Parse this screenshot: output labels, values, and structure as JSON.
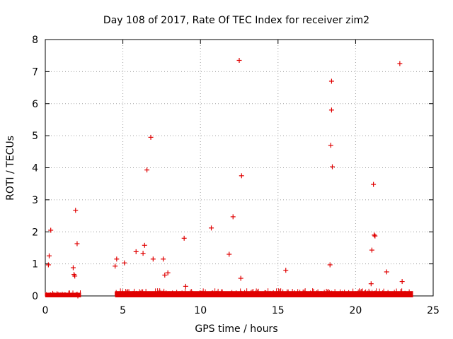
{
  "chart_data": {
    "type": "scatter",
    "title": "Day 108 of 2017, Rate Of TEC Index for receiver zim2",
    "xlabel": "GPS time / hours",
    "ylabel": "ROTI / TECUs",
    "xlim": [
      0,
      25
    ],
    "ylim": [
      0,
      8
    ],
    "xticks": [
      "0",
      "5",
      "10",
      "15",
      "20",
      "25"
    ],
    "yticks": [
      "0",
      "1",
      "2",
      "3",
      "4",
      "5",
      "6",
      "7",
      "8"
    ],
    "grid": true,
    "marker": "plus",
    "color": "#e00000",
    "baseline_segments": [
      {
        "x_start": 0.0,
        "x_end": 2.3,
        "y_max": 0.1
      },
      {
        "x_start": 4.5,
        "x_end": 23.7,
        "y_max": 0.15
      }
    ],
    "x": [
      0.2,
      0.25,
      0.35,
      1.8,
      1.85,
      1.9,
      1.95,
      2.05,
      2.1,
      4.5,
      4.6,
      5.1,
      5.85,
      6.3,
      6.4,
      6.55,
      6.8,
      6.95,
      7.6,
      7.7,
      7.9,
      8.95,
      9.05,
      10.7,
      11.85,
      12.1,
      12.5,
      12.6,
      12.65,
      15.5,
      18.35,
      18.4,
      18.45,
      18.45,
      18.5,
      21.0,
      21.05,
      21.15,
      21.2,
      21.25,
      22.0,
      22.85,
      23.0
    ],
    "y": [
      0.97,
      1.25,
      2.05,
      0.88,
      0.67,
      0.62,
      2.67,
      1.63,
      0.0,
      0.93,
      1.15,
      1.03,
      1.38,
      1.33,
      1.58,
      3.93,
      4.95,
      1.15,
      1.15,
      0.65,
      0.72,
      1.8,
      0.3,
      2.12,
      1.3,
      2.47,
      7.35,
      0.55,
      3.75,
      0.8,
      0.97,
      4.7,
      5.8,
      6.7,
      4.03,
      0.38,
      1.43,
      3.48,
      1.9,
      1.87,
      0.75,
      7.25,
      0.45
    ]
  }
}
